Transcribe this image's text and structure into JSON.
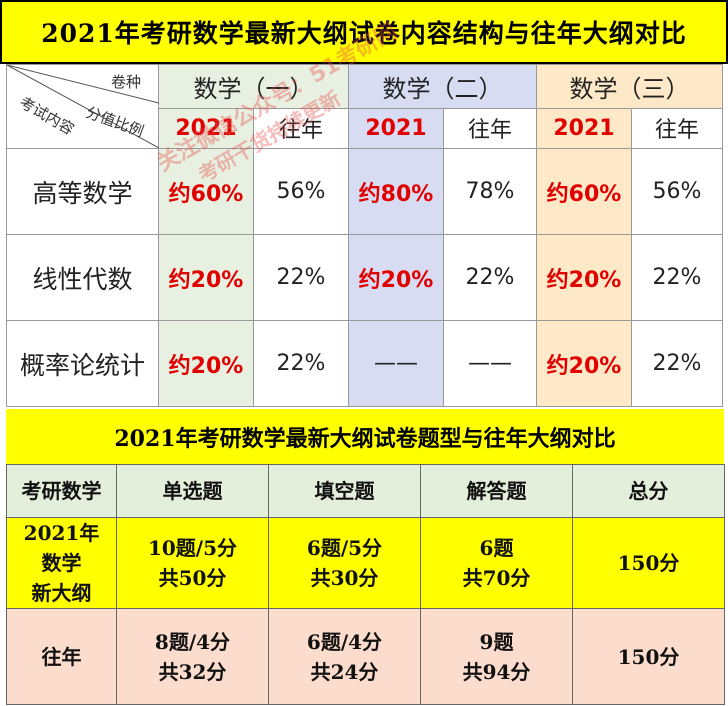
{
  "table1": {
    "title": "2021年考研数学最新大纲试卷内容结构与往年大纲对比",
    "header_corner": {
      "top_right": "卷种",
      "middle": "分值比例",
      "bottom_left": "考试内容"
    },
    "groups": [
      "数学（一）",
      "数学（二）",
      "数学（三）"
    ],
    "sub_headers": [
      "2021",
      "往年",
      "2021",
      "往年",
      "2021",
      "往年"
    ],
    "rows": [
      {
        "label": "高等数学",
        "values": [
          "约60%",
          "56%",
          "约80%",
          "78%",
          "约60%",
          "56%"
        ]
      },
      {
        "label": "线性代数",
        "values": [
          "约20%",
          "22%",
          "约20%",
          "22%",
          "约20%",
          "22%"
        ]
      },
      {
        "label": "概率论统计",
        "values": [
          "约20%",
          "22%",
          "——",
          "——",
          "约20%",
          "22%"
        ]
      }
    ]
  },
  "watermark": {
    "line1": "关注微信公众号：51考研网",
    "line2": "考研干货持续更新"
  },
  "table2": {
    "title": "2021年考研数学最新大纲试卷题型与往年大纲对比",
    "headers": [
      "考研数学",
      "单选题",
      "填空题",
      "解答题",
      "总分"
    ],
    "rows": [
      {
        "label_lines": [
          "2021年",
          "数学",
          "新大纲"
        ],
        "cells": [
          [
            "10题/5分",
            "共50分"
          ],
          [
            "6题/5分",
            "共30分"
          ],
          [
            "6题",
            "共70分"
          ],
          [
            "150分"
          ]
        ]
      },
      {
        "label_lines": [
          "往年"
        ],
        "cells": [
          [
            "8题/4分",
            "共32分"
          ],
          [
            "6题/4分",
            "共24分"
          ],
          [
            "9题",
            "共94分"
          ],
          [
            "150分"
          ]
        ]
      }
    ]
  },
  "colors": {
    "title_bg": "#ffff00",
    "highlight_red": "#e00000",
    "math1_bg": "#e8f1e1",
    "math2_bg": "#d8dcf2",
    "math3_bg": "#fde9c7",
    "row_new_bg": "#ffff00",
    "row_old_bg": "#fcdccd"
  }
}
